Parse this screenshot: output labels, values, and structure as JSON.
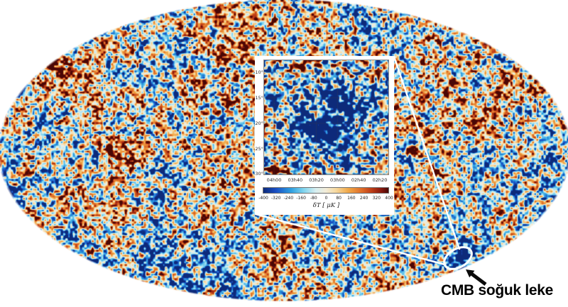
{
  "figure": {
    "annotation": "CMB soğuk leke"
  },
  "inset": {
    "y_ticks": [
      "-10°",
      "-15°",
      "-20°",
      "-25°",
      "-30°"
    ],
    "x_ticks": [
      "04h00",
      "03h40",
      "03h20",
      "03h00",
      "02h40",
      "02h20"
    ],
    "colorbar": {
      "ticks": [
        "-400",
        "-320",
        "-240",
        "-160",
        "-80",
        "0",
        "80",
        "160",
        "240",
        "320",
        "400"
      ],
      "unit_label": "δT [ μK ]"
    }
  },
  "palette": {
    "background": "#ffffff",
    "annotation_color": "#000000",
    "callout_color": "#ffffff",
    "arrow_color": "#0a0a0a",
    "colormap_stops": [
      {
        "t": 0.0,
        "c": "#0d2a7a"
      },
      {
        "t": 0.1,
        "c": "#1a4fc4"
      },
      {
        "t": 0.22,
        "c": "#2e9fe0"
      },
      {
        "t": 0.32,
        "c": "#7fd4ee"
      },
      {
        "t": 0.42,
        "c": "#d8eef0"
      },
      {
        "t": 0.5,
        "c": "#f2ecd8"
      },
      {
        "t": 0.58,
        "c": "#f6d9a0"
      },
      {
        "t": 0.68,
        "c": "#f0a848"
      },
      {
        "t": 0.78,
        "c": "#e0702a"
      },
      {
        "t": 0.86,
        "c": "#c04018"
      },
      {
        "t": 0.94,
        "c": "#8a1a0e"
      },
      {
        "t": 1.0,
        "c": "#4a0705"
      }
    ]
  },
  "chart_data": [
    {
      "type": "heatmap",
      "name": "cmb-full-sky-map",
      "projection": "Mollweide ellipse full-sky temperature map",
      "colormap": "blue (cold) - cream - orange/red (hot)",
      "annotation": "CMB soğuk leke",
      "highlight": "cold spot circled in white near lower-right limb, black arrow pointing to it"
    },
    {
      "type": "heatmap",
      "name": "cold-spot-inset",
      "x": [
        "04h00",
        "03h40",
        "03h20",
        "03h00",
        "02h40",
        "02h20"
      ],
      "y": [
        "-10°",
        "-15°",
        "-20°",
        "-25°",
        "-30°"
      ],
      "grid": true,
      "colorbar": {
        "min": -400,
        "max": 400,
        "ticks": [
          -400,
          -320,
          -240,
          -160,
          -80,
          0,
          80,
          160,
          240,
          320,
          400
        ],
        "label": "δT [ μK ]"
      },
      "feature": "extended blue cold region at centre of the inset map"
    }
  ]
}
